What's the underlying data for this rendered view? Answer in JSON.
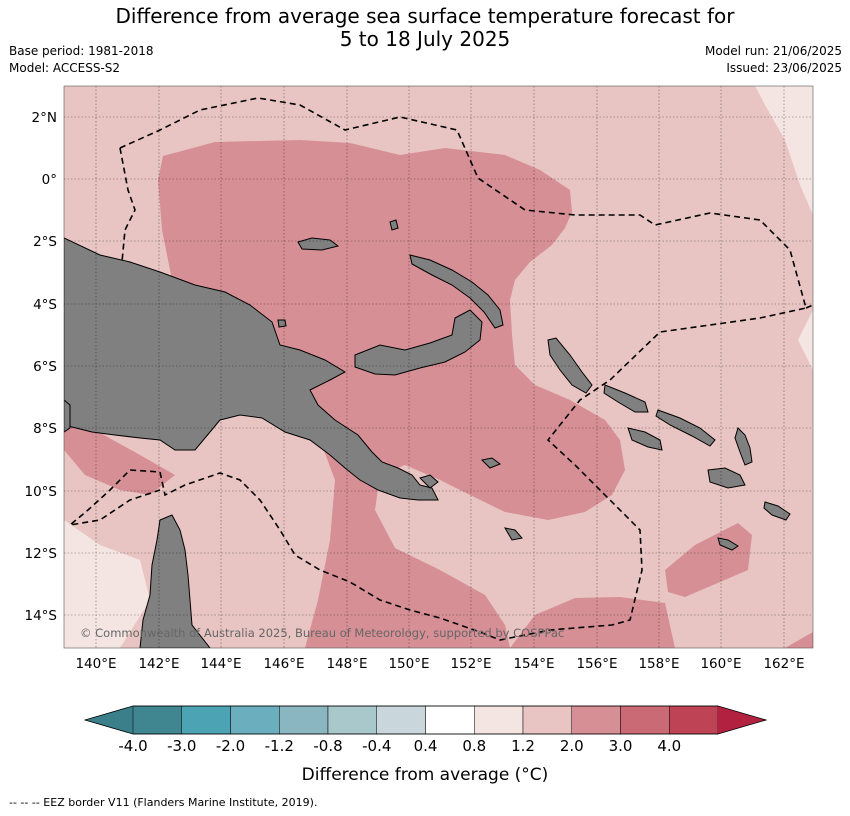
{
  "header": {
    "title_line1": "Difference from average sea surface temperature forecast for",
    "title_line2": "5 to 18 July 2025",
    "base_period": "Base period: 1981-2018",
    "model": "Model: ACCESS-S2",
    "model_run": "Model run: 21/06/2025",
    "issued": "Issued: 23/06/2025"
  },
  "map": {
    "lon_labels": [
      "140°E",
      "142°E",
      "144°E",
      "146°E",
      "148°E",
      "150°E",
      "152°E",
      "154°E",
      "156°E",
      "158°E",
      "160°E",
      "162°E"
    ],
    "lat_labels": [
      "2°N",
      "0°",
      "2°S",
      "4°S",
      "6°S",
      "8°S",
      "10°S",
      "12°S",
      "14°S"
    ],
    "credit": "© Commonwealth of Australia 2025, Bureau of Meteorology, supported by COSPPac",
    "colors": {
      "land": "#808080",
      "level_0_4": "#f4e5e3",
      "level_0_8": "#e8c5c2",
      "level_1_2": "#d78f96",
      "level_2_0": "#ca6a74"
    }
  },
  "colorbar": {
    "tick_labels": [
      "-4.0",
      "-3.0",
      "-2.0",
      "-1.2",
      "-0.8",
      "-0.4",
      "0.4",
      "0.8",
      "1.2",
      "2.0",
      "3.0",
      "4.0"
    ],
    "colors": [
      "#3f8691",
      "#4ba3b4",
      "#6bafbf",
      "#8ab6c1",
      "#a8c8cb",
      "#c9d7dc",
      "#ffffff",
      "#f4e5e3",
      "#e8c5c2",
      "#d78f96",
      "#ca6a74",
      "#be4455"
    ],
    "under_color": "#3a7f89",
    "over_color": "#b22140",
    "label": "Difference from average (°C)"
  },
  "footer": {
    "text": "--  --  -- EEZ border V11 (Flanders Marine Institute, 2019)."
  }
}
